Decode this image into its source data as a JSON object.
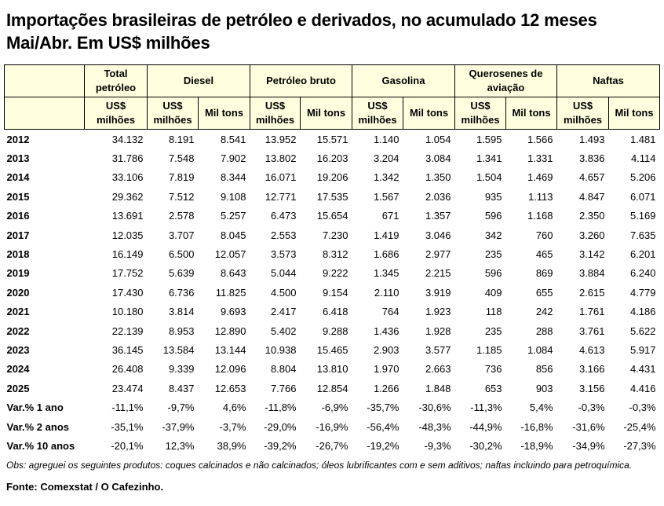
{
  "title": "Importações brasileiras de petróleo e derivados, no acumulado 12 meses Mai/Abr. Em US$ milhões",
  "header": {
    "groups": [
      "Total petróleo",
      "Diesel",
      "Petróleo bruto",
      "Gasolina",
      "Querosenes de aviação",
      "Naftas"
    ],
    "units": [
      "US$ milhões",
      "US$ milhões",
      "Mil tons",
      "US$ milhões",
      "Mil tons",
      "US$ milhões",
      "Mil tons",
      "US$ milhões",
      "Mil tons",
      "US$ milhões",
      "Mil tons"
    ]
  },
  "rows": [
    {
      "label": "2012",
      "values": [
        "34.132",
        "8.191",
        "8.541",
        "13.952",
        "15.571",
        "1.140",
        "1.054",
        "1.595",
        "1.566",
        "1.493",
        "1.481"
      ]
    },
    {
      "label": "2013",
      "values": [
        "31.786",
        "7.548",
        "7.902",
        "13.802",
        "16.203",
        "3.204",
        "3.084",
        "1.341",
        "1.331",
        "3.836",
        "4.114"
      ]
    },
    {
      "label": "2014",
      "values": [
        "33.106",
        "7.819",
        "8.344",
        "16.071",
        "19.206",
        "1.342",
        "1.350",
        "1.504",
        "1.469",
        "4.657",
        "5.206"
      ]
    },
    {
      "label": "2015",
      "values": [
        "29.362",
        "7.512",
        "9.108",
        "12.771",
        "17.535",
        "1.567",
        "2.036",
        "935",
        "1.113",
        "4.847",
        "6.071"
      ]
    },
    {
      "label": "2016",
      "values": [
        "13.691",
        "2.578",
        "5.257",
        "6.473",
        "15.654",
        "671",
        "1.357",
        "596",
        "1.168",
        "2.350",
        "5.169"
      ]
    },
    {
      "label": "2017",
      "values": [
        "12.035",
        "3.707",
        "8.045",
        "2.553",
        "7.230",
        "1.419",
        "3.046",
        "342",
        "760",
        "3.260",
        "7.635"
      ]
    },
    {
      "label": "2018",
      "values": [
        "16.149",
        "6.500",
        "12.057",
        "3.573",
        "8.312",
        "1.686",
        "2.977",
        "235",
        "465",
        "3.142",
        "6.201"
      ]
    },
    {
      "label": "2019",
      "values": [
        "17.752",
        "5.639",
        "8.643",
        "5.044",
        "9.222",
        "1.345",
        "2.215",
        "596",
        "869",
        "3.884",
        "6.240"
      ]
    },
    {
      "label": "2020",
      "values": [
        "17.430",
        "6.736",
        "11.825",
        "4.500",
        "9.154",
        "2.110",
        "3.919",
        "409",
        "655",
        "2.615",
        "4.779"
      ]
    },
    {
      "label": "2021",
      "values": [
        "10.180",
        "3.814",
        "9.693",
        "2.417",
        "6.418",
        "764",
        "1.923",
        "118",
        "242",
        "1.761",
        "4.186"
      ]
    },
    {
      "label": "2022",
      "values": [
        "22.139",
        "8.953",
        "12.890",
        "5.402",
        "9.288",
        "1.436",
        "1.928",
        "235",
        "288",
        "3.761",
        "5.622"
      ]
    },
    {
      "label": "2023",
      "values": [
        "36.145",
        "13.584",
        "13.144",
        "10.938",
        "15.465",
        "2.903",
        "3.577",
        "1.185",
        "1.084",
        "4.613",
        "5.917"
      ]
    },
    {
      "label": "2024",
      "values": [
        "26.408",
        "9.339",
        "12.096",
        "8.804",
        "13.810",
        "1.970",
        "2.663",
        "736",
        "856",
        "3.166",
        "4.431"
      ]
    },
    {
      "label": "2025",
      "values": [
        "23.474",
        "8.437",
        "12.653",
        "7.766",
        "12.854",
        "1.266",
        "1.848",
        "653",
        "903",
        "3.156",
        "4.416"
      ]
    },
    {
      "label": "Var.% 1 ano",
      "values": [
        "-11,1%",
        "-9,7%",
        "4,6%",
        "-11,8%",
        "-6,9%",
        "-35,7%",
        "-30,6%",
        "-11,3%",
        "5,4%",
        "-0,3%",
        "-0,3%"
      ]
    },
    {
      "label": "Var.% 2 anos",
      "values": [
        "-35,1%",
        "-37,9%",
        "-3,7%",
        "-29,0%",
        "-16,9%",
        "-56,4%",
        "-48,3%",
        "-44,9%",
        "-16,8%",
        "-31,6%",
        "-25,4%"
      ]
    },
    {
      "label": "Var.% 10 anos",
      "values": [
        "-20,1%",
        "12,3%",
        "38,9%",
        "-39,2%",
        "-26,7%",
        "-19,2%",
        "-9,3%",
        "-30,2%",
        "-18,9%",
        "-34,9%",
        "-27,3%"
      ]
    }
  ],
  "note": "Obs: agreguei os seguintes produtos: coques calcinados e não calcinados; óleos lubrificantes com e sem aditivos; naftas incluindo para petroquímica.",
  "source": "Fonte: Comexstat / O Cafezinho."
}
